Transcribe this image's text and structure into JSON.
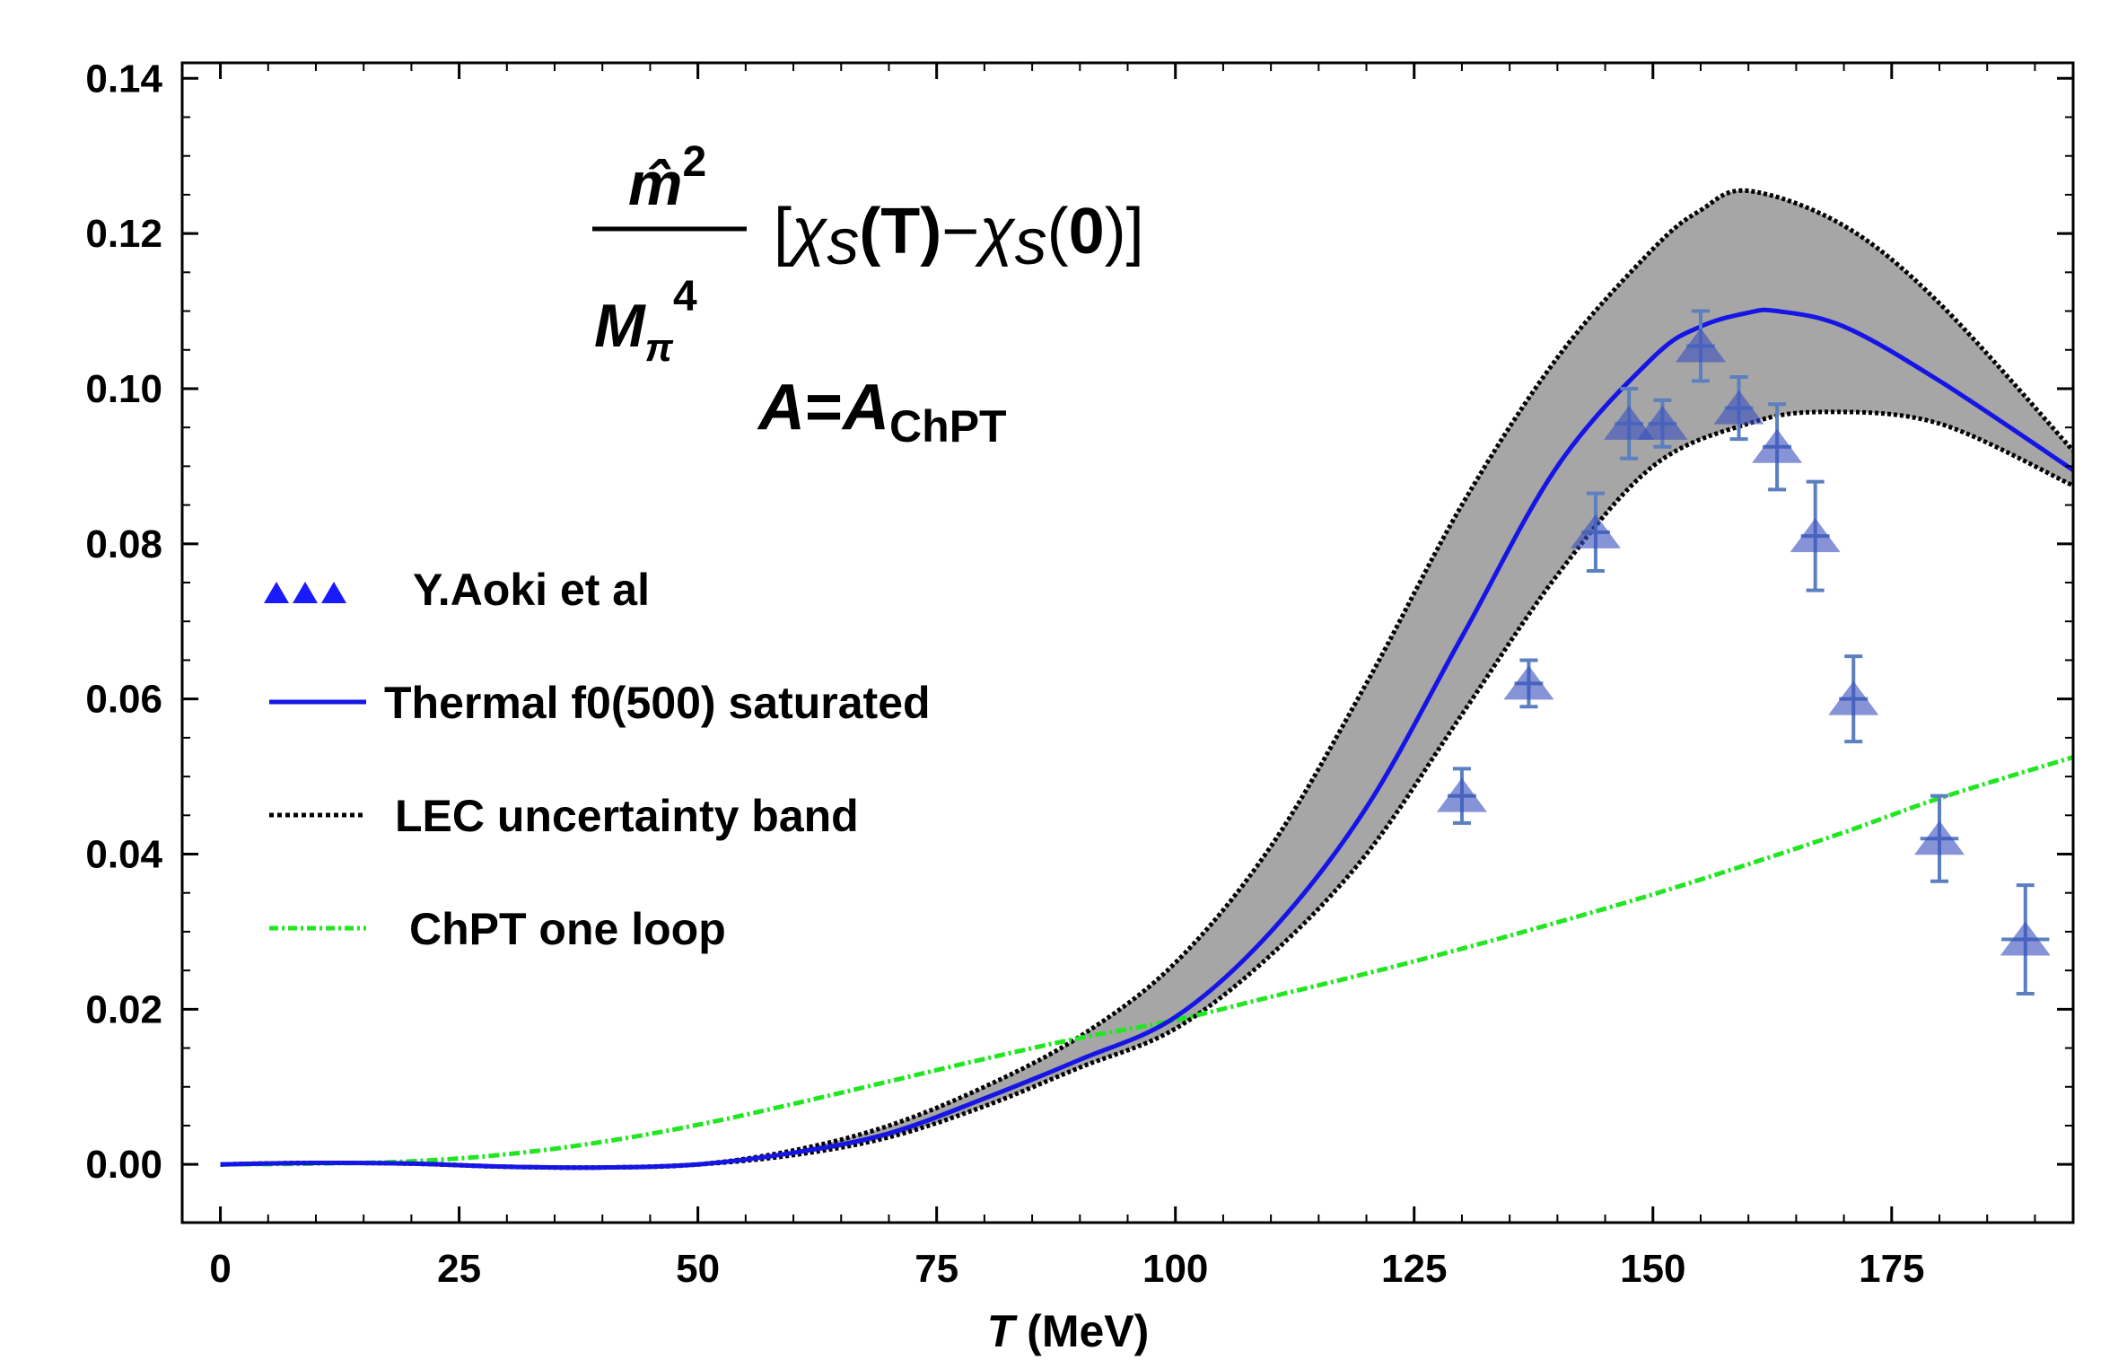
{
  "chart_data": {
    "type": "line",
    "title": "",
    "xlabel": {
      "symbol": "T",
      "unit": "(MeV)"
    },
    "ylabel": "",
    "xlim": [
      -4,
      194
    ],
    "ylim": [
      -0.0075,
      0.142
    ],
    "x_ticks": [
      "0",
      "25",
      "50",
      "75",
      "100",
      "125",
      "150",
      "175"
    ],
    "x_tick_values": [
      0,
      25,
      50,
      75,
      100,
      125,
      150,
      175
    ],
    "y_ticks": [
      "0.00",
      "0.02",
      "0.04",
      "0.06",
      "0.08",
      "0.10",
      "0.12",
      "0.14"
    ],
    "y_tick_values": [
      0,
      0.02,
      0.04,
      0.06,
      0.08,
      0.1,
      0.12,
      0.14
    ],
    "annotation": {
      "numerator": "m̂",
      "numerator_exp": "2",
      "denominator": "M",
      "denominator_sub": "π",
      "denominator_exp": "4",
      "bracket_open": "[",
      "chi": "χ",
      "s": "s",
      "arg1": "(T)",
      "minus": "−",
      "arg2_open": "(",
      "arg2_zero": "0",
      "arg2_close": ")",
      "bracket_close": "]",
      "a_lhs": "A",
      "a_eq": "=",
      "a_rhs": "A",
      "a_rhs_sub": "ChPT"
    },
    "legend": [
      {
        "label": "Y.Aoki et al",
        "style": "triangles",
        "color": "#1a1aff"
      },
      {
        "label": "Thermal f0(500) saturated",
        "style": "solid",
        "color": "#1515e6"
      },
      {
        "label": "LEC uncertainty band",
        "style": "dotted",
        "color": "#000000"
      },
      {
        "label": "ChPT one loop",
        "style": "dashdot",
        "color": "#22e622"
      }
    ],
    "series": [
      {
        "name": "Thermal f0(500) saturated",
        "color": "#1515e6",
        "x": [
          0,
          10,
          20,
          30,
          40,
          50,
          60,
          70,
          80,
          90,
          100,
          110,
          120,
          130,
          140,
          150,
          155,
          160,
          163,
          170,
          180,
          194
        ],
        "y": [
          0,
          0.0002,
          0.0001,
          -0.0003,
          -0.0004,
          0.0,
          0.0015,
          0.004,
          0.0085,
          0.0135,
          0.019,
          0.03,
          0.046,
          0.068,
          0.09,
          0.104,
          0.108,
          0.1098,
          0.11,
          0.108,
          0.101,
          0.0895
        ]
      },
      {
        "name": "LEC band upper",
        "color": "#000000",
        "x": [
          0,
          10,
          20,
          30,
          40,
          50,
          60,
          70,
          80,
          90,
          100,
          110,
          120,
          130,
          140,
          150,
          155,
          160,
          170,
          180,
          194
        ],
        "y": [
          0,
          0.0002,
          0.0001,
          -0.0003,
          -0.0004,
          0.0,
          0.0018,
          0.005,
          0.01,
          0.0165,
          0.026,
          0.041,
          0.062,
          0.085,
          0.104,
          0.118,
          0.123,
          0.1255,
          0.121,
          0.111,
          0.092
        ]
      },
      {
        "name": "LEC band lower",
        "color": "#000000",
        "x": [
          0,
          10,
          20,
          30,
          40,
          50,
          60,
          70,
          80,
          90,
          100,
          110,
          120,
          130,
          140,
          150,
          160,
          168,
          180,
          194
        ],
        "y": [
          0,
          0.0002,
          0.0001,
          -0.0003,
          -0.0004,
          0.0,
          0.0012,
          0.0035,
          0.0075,
          0.0125,
          0.0175,
          0.027,
          0.04,
          0.058,
          0.076,
          0.09,
          0.0955,
          0.097,
          0.0955,
          0.0875
        ]
      },
      {
        "name": "ChPT one loop",
        "color": "#22e622",
        "x": [
          0,
          10,
          20,
          30,
          40,
          50,
          60,
          70,
          80,
          90,
          100,
          110,
          120,
          130,
          140,
          150,
          160,
          170,
          180,
          194
        ],
        "y": [
          0,
          0.0001,
          0.0004,
          0.0013,
          0.0029,
          0.0051,
          0.0078,
          0.0107,
          0.0136,
          0.0163,
          0.0186,
          0.0216,
          0.0246,
          0.0278,
          0.0312,
          0.0348,
          0.0387,
          0.0428,
          0.0472,
          0.0525
        ]
      }
    ],
    "lattice_points": [
      {
        "x": 130,
        "y": 0.0475,
        "yerr": 0.0035,
        "xerr": 1.5
      },
      {
        "x": 137,
        "y": 0.062,
        "yerr": 0.003,
        "xerr": 1.5
      },
      {
        "x": 144,
        "y": 0.0815,
        "yerr": 0.005,
        "xerr": 1.5
      },
      {
        "x": 147.5,
        "y": 0.0955,
        "yerr": 0.0045,
        "xerr": 1.5
      },
      {
        "x": 151,
        "y": 0.0955,
        "yerr": 0.003,
        "xerr": 1.5
      },
      {
        "x": 155,
        "y": 0.1055,
        "yerr": 0.0045,
        "xerr": 1.5
      },
      {
        "x": 159,
        "y": 0.0975,
        "yerr": 0.004,
        "xerr": 1.5
      },
      {
        "x": 163,
        "y": 0.0925,
        "yerr": 0.0055,
        "xerr": 1.5
      },
      {
        "x": 167,
        "y": 0.081,
        "yerr": 0.007,
        "xerr": 1.5
      },
      {
        "x": 171,
        "y": 0.06,
        "yerr": 0.0055,
        "xerr": 1.5
      },
      {
        "x": 180,
        "y": 0.042,
        "yerr": 0.0055,
        "xerr": 2
      },
      {
        "x": 189,
        "y": 0.029,
        "yerr": 0.007,
        "xerr": 2.5
      }
    ]
  }
}
